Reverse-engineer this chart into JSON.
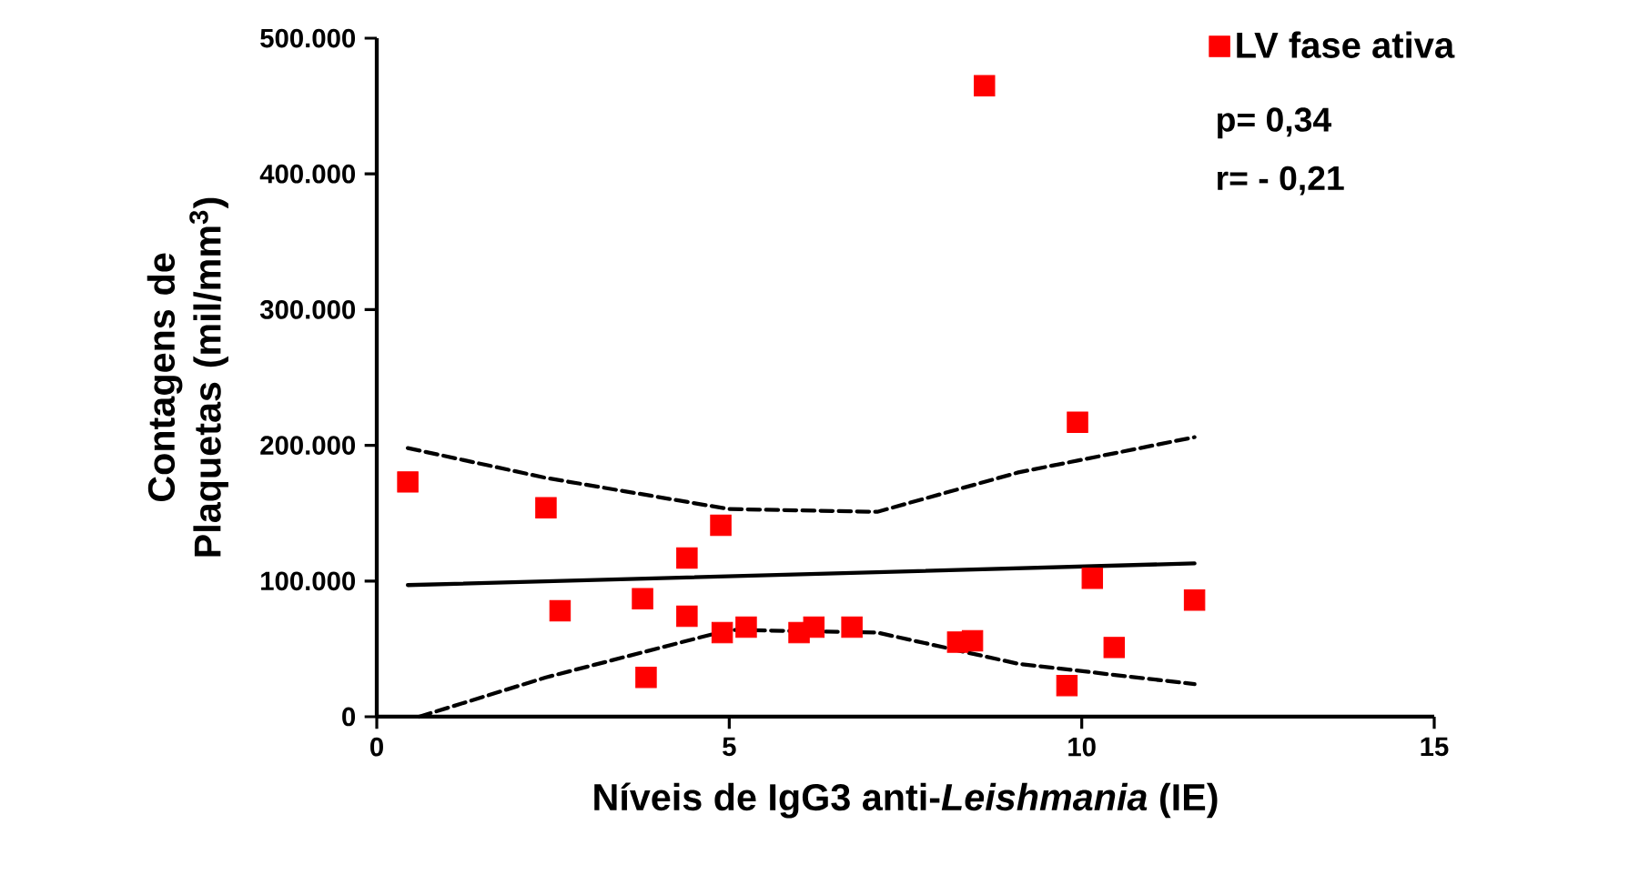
{
  "chart_data": {
    "type": "scatter",
    "xlabel": "Níveis de IgG3 anti-*Leishmania* (IE)",
    "ylabel": "Contagens de Plaquetas (mil/mm$^{3}$)",
    "xlim": [
      0,
      15
    ],
    "ylim": [
      0,
      500000
    ],
    "xticks": [
      0,
      5,
      10,
      15
    ],
    "yticks": [
      0,
      {
        "value": 100000,
        "label": "100.000"
      },
      {
        "value": 200000,
        "label": "200.000"
      },
      {
        "value": 300000,
        "label": "300.000"
      },
      {
        "value": 400000,
        "label": "400.000"
      },
      {
        "value": 500000,
        "label": "500.000"
      }
    ],
    "grid": false,
    "legend": "top right",
    "annotations": [
      "p= 0,34",
      "r= - 0,21"
    ],
    "series": [
      {
        "name": "LV fase ativa",
        "marker": "square",
        "color": "#ff0000",
        "x": [
          0.44,
          2.4,
          2.6,
          3.77,
          3.82,
          4.4,
          4.4,
          4.88,
          4.9,
          5.24,
          5.99,
          6.2,
          6.74,
          8.24,
          8.45,
          8.62,
          9.94,
          9.79,
          10.15,
          10.46,
          11.6
        ],
        "values": [
          173000,
          154000,
          78000,
          87000,
          29000,
          117000,
          74000,
          141000,
          62000,
          66000,
          62000,
          66000,
          66000,
          55000,
          56000,
          465000,
          217000,
          23000,
          102000,
          51000,
          86000
        ]
      },
      {
        "type": "line",
        "color": "#000000",
        "line_style": "solid",
        "marker": "none",
        "x": [
          0.44,
          11.6
        ],
        "values": [
          97000,
          113000
        ]
      },
      {
        "type": "line",
        "color": "#000000",
        "line_style": "dashed",
        "marker": "none",
        "x": [
          0.44,
          2.4,
          5.0,
          7.1,
          9.1,
          11.6
        ],
        "values": [
          198000,
          176000,
          153000,
          151000,
          180000,
          206000
        ]
      },
      {
        "type": "line",
        "color": "#000000",
        "line_style": "dashed",
        "marker": "none",
        "x": [
          0.6,
          2.4,
          5.0,
          7.1,
          9.1,
          11.6
        ],
        "values": [
          0,
          29000,
          64000,
          62000,
          39000,
          24000
        ]
      }
    ]
  }
}
